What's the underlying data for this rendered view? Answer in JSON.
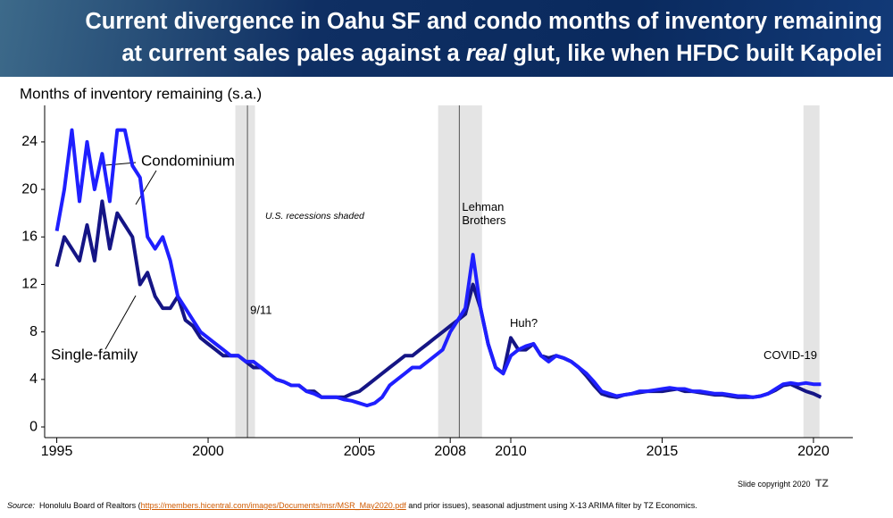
{
  "chart_data": {
    "type": "line",
    "title_parts": [
      "Current divergence in Oahu SF and condo months of inventory remaining",
      "at current sales pales against a",
      "real",
      "glut, like when HFDC built Kapolei"
    ],
    "y_label": "Months of inventory remaining (s.a.)",
    "x": [
      1995,
      1995.25,
      1995.5,
      1995.75,
      1996,
      1996.25,
      1996.5,
      1996.75,
      1997,
      1997.25,
      1997.5,
      1997.75,
      1998,
      1998.25,
      1998.5,
      1998.75,
      1999,
      1999.25,
      1999.5,
      1999.75,
      2000,
      2000.25,
      2000.5,
      2000.75,
      2001,
      2001.25,
      2001.5,
      2001.75,
      2002,
      2002.25,
      2002.5,
      2002.75,
      2003,
      2003.25,
      2003.5,
      2003.75,
      2004,
      2004.25,
      2004.5,
      2004.75,
      2005,
      2005.25,
      2005.5,
      2005.75,
      2006,
      2006.25,
      2006.5,
      2006.75,
      2007,
      2007.25,
      2007.5,
      2007.75,
      2008,
      2008.25,
      2008.5,
      2008.75,
      2009,
      2009.25,
      2009.5,
      2009.75,
      2010,
      2010.25,
      2010.5,
      2010.75,
      2011,
      2011.25,
      2011.5,
      2011.75,
      2012,
      2012.25,
      2012.5,
      2012.75,
      2013,
      2013.25,
      2013.5,
      2013.75,
      2014,
      2014.25,
      2014.5,
      2014.75,
      2015,
      2015.25,
      2015.5,
      2015.75,
      2016,
      2016.25,
      2016.5,
      2016.75,
      2017,
      2017.25,
      2017.5,
      2017.75,
      2018,
      2018.25,
      2018.5,
      2018.75,
      2019,
      2019.25,
      2019.5,
      2019.75,
      2020,
      2020.25
    ],
    "series": [
      {
        "name": "Condominium",
        "color": "#1f1fff",
        "values": [
          16.5,
          20,
          25,
          19,
          24,
          20,
          23,
          19,
          25,
          25,
          22,
          21,
          16,
          15,
          16,
          14,
          11,
          10,
          9,
          8,
          7.5,
          7,
          6.5,
          6,
          6,
          5.5,
          5.5,
          5,
          4.5,
          4,
          3.8,
          3.5,
          3.5,
          3,
          2.8,
          2.5,
          2.5,
          2.5,
          2.3,
          2.2,
          2,
          1.8,
          2,
          2.5,
          3.5,
          4,
          4.5,
          5,
          5,
          5.5,
          6,
          6.5,
          8,
          9,
          10,
          14.5,
          10,
          7,
          5,
          4.5,
          6,
          6.5,
          6.8,
          7,
          6,
          5.5,
          6,
          5.8,
          5.5,
          5,
          4.5,
          3.8,
          3,
          2.8,
          2.6,
          2.7,
          2.8,
          3,
          3,
          3.1,
          3.2,
          3.3,
          3.2,
          3.2,
          3,
          3,
          2.9,
          2.8,
          2.8,
          2.7,
          2.6,
          2.6,
          2.5,
          2.6,
          2.8,
          3.2,
          3.6,
          3.7,
          3.6,
          3.7,
          3.6,
          3.6
        ]
      },
      {
        "name": "Single-family",
        "color": "#151585",
        "values": [
          13.5,
          16,
          15,
          14,
          17,
          14,
          19,
          15,
          18,
          17,
          16,
          12,
          13,
          11,
          10,
          10,
          11,
          9,
          8.5,
          7.5,
          7,
          6.5,
          6,
          6,
          6,
          5.5,
          5,
          5,
          4.5,
          4,
          3.8,
          3.5,
          3.5,
          3,
          3,
          2.5,
          2.5,
          2.5,
          2.5,
          2.8,
          3,
          3.5,
          4,
          4.5,
          5,
          5.5,
          6,
          6,
          6.5,
          7,
          7.5,
          8,
          8.5,
          9,
          9.5,
          12,
          10,
          7,
          5,
          4.5,
          7.5,
          6.5,
          6.5,
          7,
          6,
          5.8,
          6,
          5.8,
          5.5,
          5,
          4.3,
          3.5,
          2.8,
          2.6,
          2.5,
          2.7,
          2.8,
          2.9,
          3,
          3,
          3,
          3.1,
          3.2,
          3,
          3,
          2.9,
          2.8,
          2.7,
          2.7,
          2.6,
          2.5,
          2.5,
          2.5,
          2.6,
          2.8,
          3.1,
          3.5,
          3.6,
          3.3,
          3,
          2.8,
          2.5
        ]
      }
    ],
    "xlim": [
      1994.6,
      2021.3
    ],
    "ylim": [
      -0.9,
      26.7
    ],
    "xticks": [
      1995,
      2000,
      2005,
      2008,
      2010,
      2015,
      2020
    ],
    "yticks": [
      0,
      4,
      8,
      12,
      16,
      20,
      24
    ],
    "recessions": [
      [
        2000.9,
        2001.55
      ],
      [
        2007.6,
        2009.05
      ],
      [
        2019.67,
        2020.2
      ]
    ],
    "events": [
      {
        "label": "9/11",
        "x": 2001.3
      },
      {
        "label": "Lehman Brothers",
        "x": 2008.3
      }
    ],
    "notes": {
      "recessions": "U.S. recessions shaded",
      "huh": "Huh?",
      "covid": "COVID-19"
    },
    "copyright": "Slide copyright 2020",
    "logo": "TZ",
    "source": {
      "label": "Source:",
      "before": "Honolulu Board of Realtors (",
      "link": "https://members.hicentral.com/images/Documents/msr/MSR_May2020.pdf",
      "after": "and prior issues), seasonal adjustment using X-13 ARIMA filter by TZ Economics."
    }
  }
}
